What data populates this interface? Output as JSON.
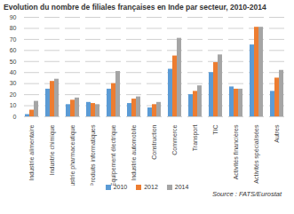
{
  "chart_data": {
    "type": "bar",
    "title": "Evolution du nombre de filiales françaises en Inde par secteur, 2010-2014",
    "categories": [
      "Industrie alimentaire",
      "Industrie chimique",
      "Industrie pharmaceutique",
      "Produits informatiques",
      "Equipement électrique",
      "Industrie automobile",
      "Construction",
      "Commerce",
      "Transport",
      "TIC",
      "Activités financières",
      "Activités spécialisées",
      "Autres"
    ],
    "series": [
      {
        "name": "2010",
        "color": "#5b9bd5",
        "values": [
          2,
          25,
          11,
          13,
          25,
          12,
          8,
          43,
          20,
          40,
          27,
          65,
          23
        ]
      },
      {
        "name": "2012",
        "color": "#ed7d31",
        "values": [
          6,
          32,
          15,
          12,
          30,
          16,
          11,
          55,
          23,
          49,
          25,
          81,
          35
        ]
      },
      {
        "name": "2014",
        "color": "#a5a5a5",
        "values": [
          14,
          34,
          17,
          11,
          41,
          18,
          13,
          71,
          28,
          56,
          25,
          81,
          42
        ]
      }
    ],
    "ylim": [
      0,
      90
    ],
    "yticks": [
      0,
      10,
      20,
      30,
      40,
      50,
      60,
      70,
      80,
      90
    ],
    "grid": true,
    "legend": "bottom",
    "annotations": [
      "Source : FATS/Eurostat"
    ]
  }
}
